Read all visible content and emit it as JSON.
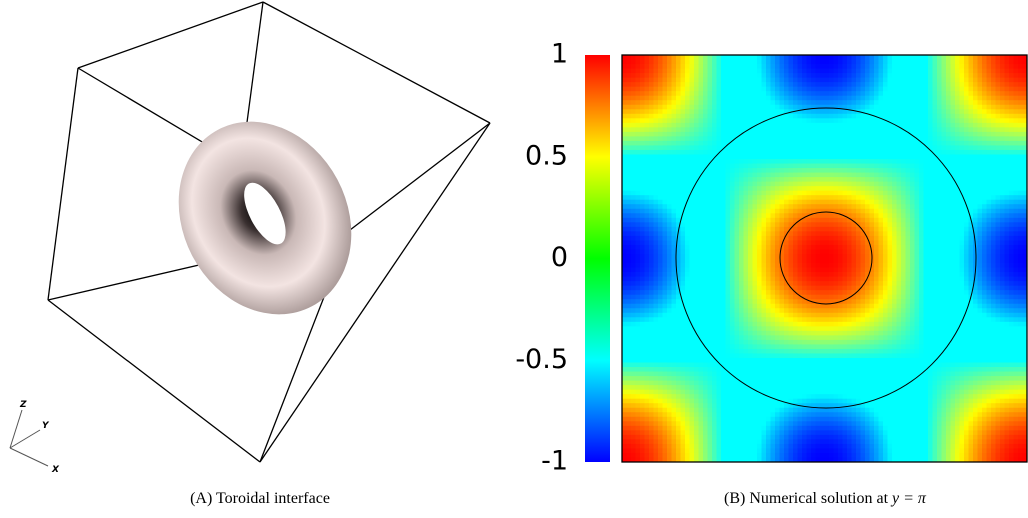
{
  "panel_a": {
    "axes": {
      "z": "Z",
      "y": "Y",
      "x": "X"
    },
    "caption": "(A) Toroidal interface"
  },
  "panel_b": {
    "colorbar": {
      "lim": [
        -1,
        1
      ],
      "ticks": [
        1,
        0.5,
        0,
        -0.5,
        -1
      ]
    },
    "caption": {
      "text": "(B) Numerical solution at",
      "math": "y = π"
    }
  }
}
